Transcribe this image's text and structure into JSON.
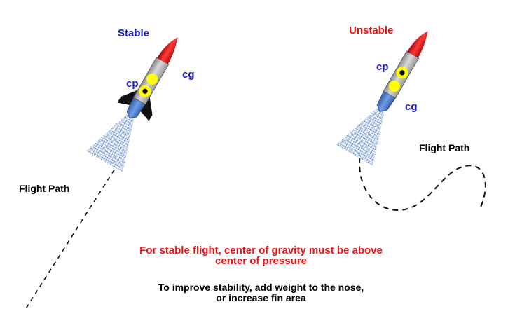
{
  "colors": {
    "stable_title": "#1a1acc",
    "unstable_title": "#ee1111",
    "cp_cg_labels": "#1a1acc",
    "rule_text": "#ee1111",
    "advice_text": "#000000",
    "rocket_body": "#b3b3b3",
    "rocket_nose": "#dd1111",
    "rocket_nozzle": "#4a7fd4",
    "marker": "#ffff00",
    "fins": "#111111"
  },
  "stable": {
    "title": "Stable",
    "cp_label": "cp",
    "cg_label": "cg",
    "flight_path_label": "Flight Path"
  },
  "unstable": {
    "title": "Unstable",
    "cp_label": "cp",
    "cg_label": "cg",
    "flight_path_label": "Flight Path"
  },
  "rule": {
    "line1": "For stable flight, center of gravity must be above",
    "line2": "center of pressure"
  },
  "advice": {
    "line1": "To improve stability, add weight to the nose,",
    "line2": "or increase fin area"
  }
}
